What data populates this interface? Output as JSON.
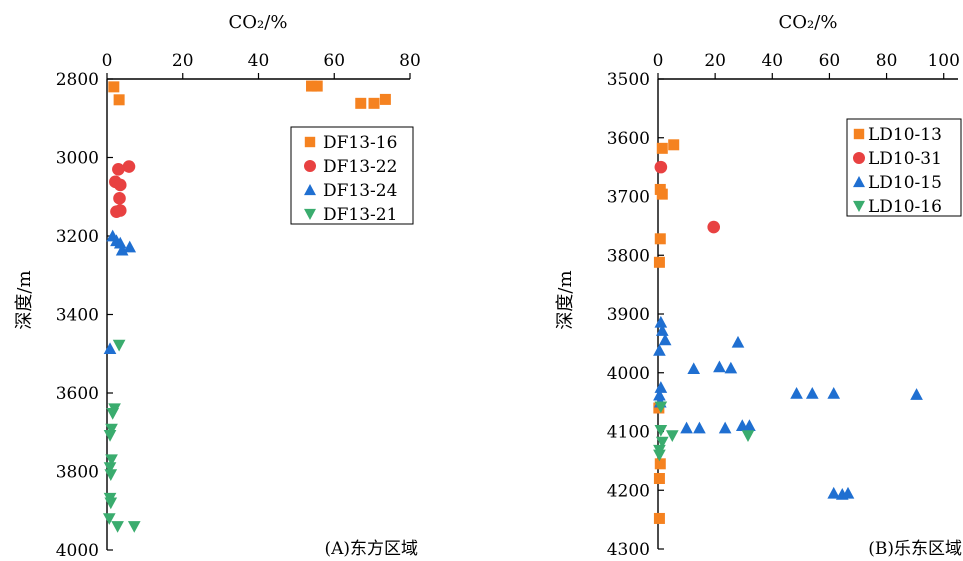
{
  "chart_data": [
    {
      "type": "scatter",
      "panel_label": "(A)东方区域",
      "xlabel": "CO₂/%",
      "ylabel": "深度/m",
      "xlim": [
        0,
        80
      ],
      "ylim": [
        2800,
        4000
      ],
      "y_inverted": true,
      "x_axis_position": "top",
      "xticks": [
        0,
        20,
        40,
        60,
        80
      ],
      "yticks": [
        2800,
        3000,
        3200,
        3400,
        3600,
        3800,
        4000
      ],
      "legend_position": "top-right",
      "series": [
        {
          "name": "DF13-16",
          "marker": "square",
          "color": "#f58220",
          "points": [
            [
              1.8,
              2820
            ],
            [
              54,
              2818
            ],
            [
              55.5,
              2818
            ],
            [
              3.2,
              2853
            ],
            [
              67,
              2862
            ],
            [
              70.5,
              2862
            ],
            [
              73.5,
              2852
            ]
          ]
        },
        {
          "name": "DF13-22",
          "marker": "circle",
          "color": "#e84141",
          "points": [
            [
              5.8,
              3023
            ],
            [
              3.0,
              3030
            ],
            [
              2.2,
              3062
            ],
            [
              3.5,
              3070
            ],
            [
              3.3,
              3104
            ],
            [
              3.5,
              3135
            ],
            [
              2.5,
              3138
            ]
          ]
        },
        {
          "name": "DF13-24",
          "marker": "triangle-up",
          "color": "#1f6fd1",
          "points": [
            [
              1.5,
              3200
            ],
            [
              2.5,
              3212
            ],
            [
              3.5,
              3218
            ],
            [
              6.0,
              3228
            ],
            [
              4.0,
              3236
            ],
            [
              0.8,
              3487
            ]
          ]
        },
        {
          "name": "DF13-21",
          "marker": "triangle-down",
          "color": "#3aac6e",
          "points": [
            [
              3.2,
              3478
            ],
            [
              2.0,
              3640
            ],
            [
              1.5,
              3652
            ],
            [
              1.2,
              3692
            ],
            [
              0.8,
              3708
            ],
            [
              1.2,
              3770
            ],
            [
              0.8,
              3790
            ],
            [
              1.0,
              3808
            ],
            [
              0.8,
              3868
            ],
            [
              1.0,
              3880
            ],
            [
              0.6,
              3920
            ],
            [
              2.8,
              3940
            ],
            [
              7.2,
              3940
            ]
          ]
        }
      ]
    },
    {
      "type": "scatter",
      "panel_label": "(B)乐东区域",
      "xlabel": "CO₂/%",
      "ylabel": "深度/m",
      "xlim": [
        0,
        105
      ],
      "ylim": [
        3500,
        4300
      ],
      "y_inverted": true,
      "x_axis_position": "top",
      "xticks": [
        0,
        20,
        40,
        60,
        80,
        100
      ],
      "yticks": [
        3500,
        3600,
        3700,
        3800,
        3900,
        4000,
        4100,
        4200,
        4300
      ],
      "legend_position": "top-right",
      "series": [
        {
          "name": "LD10-13",
          "marker": "square",
          "color": "#f58220",
          "points": [
            [
              5.5,
              3612
            ],
            [
              1.5,
              3618
            ],
            [
              0.8,
              3688
            ],
            [
              1.5,
              3696
            ],
            [
              0.8,
              3772
            ],
            [
              0.5,
              3812
            ],
            [
              0.3,
              4060
            ],
            [
              0.8,
              4155
            ],
            [
              0.5,
              4180
            ],
            [
              0.5,
              4248
            ]
          ]
        },
        {
          "name": "LD10-31",
          "marker": "circle",
          "color": "#e84141",
          "points": [
            [
              1.0,
              3650
            ],
            [
              19.5,
              3752
            ]
          ]
        },
        {
          "name": "LD10-15",
          "marker": "triangle-up",
          "color": "#1f6fd1",
          "points": [
            [
              1.0,
              3914
            ],
            [
              1.5,
              3928
            ],
            [
              2.5,
              3944
            ],
            [
              0.5,
              3962
            ],
            [
              12.5,
              3993
            ],
            [
              21.5,
              3990
            ],
            [
              25.5,
              3992
            ],
            [
              28.0,
              3948
            ],
            [
              1.0,
              4025
            ],
            [
              0.5,
              4038
            ],
            [
              0.8,
              4050
            ],
            [
              48.5,
              4035
            ],
            [
              54.0,
              4035
            ],
            [
              61.5,
              4035
            ],
            [
              90.5,
              4037
            ],
            [
              10.0,
              4094
            ],
            [
              14.5,
              4094
            ],
            [
              23.5,
              4094
            ],
            [
              29.5,
              4090
            ],
            [
              32.0,
              4090
            ],
            [
              61.5,
              4205
            ],
            [
              64.5,
              4207
            ],
            [
              66.5,
              4205
            ]
          ]
        },
        {
          "name": "LD10-16",
          "marker": "triangle-down",
          "color": "#3aac6e",
          "points": [
            [
              1.0,
              4058
            ],
            [
              1.0,
              4098
            ],
            [
              5.0,
              4107
            ],
            [
              31.5,
              4107
            ],
            [
              1.5,
              4118
            ],
            [
              0.5,
              4132
            ],
            [
              0.5,
              4140
            ]
          ]
        }
      ]
    }
  ]
}
